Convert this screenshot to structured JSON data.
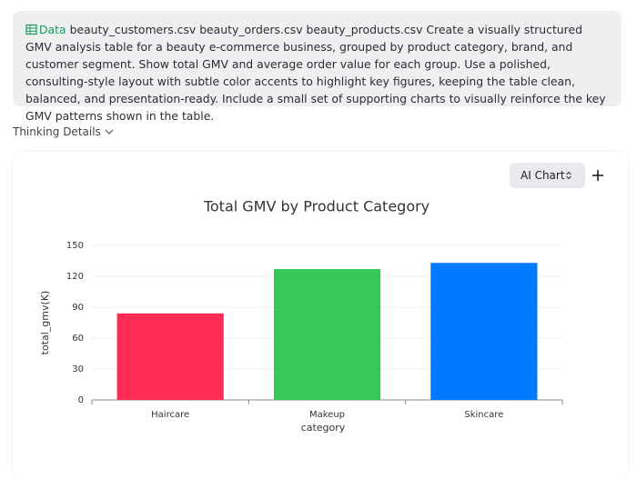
{
  "prompt": {
    "tag": "Data",
    "text": "beauty_customers.csv beauty_orders.csv beauty_products.csv Create a visually structured GMV analysis table for a beauty e-commerce business, grouped by product category, brand, and customer segment. Show total GMV and average order value for each group. Use a polished, consulting-style layout with subtle color accents to highlight key figures, keeping the table clean, balanced, and presentation-ready. Include a small set of supporting charts to visually reinforce the key GMV patterns shown in the table."
  },
  "thinking": "Thinking Details",
  "toolbar": {
    "chart_selector": "AI Chart"
  },
  "chart_data": {
    "type": "bar",
    "title": "Total GMV by Product Category",
    "x_label": "category",
    "y_label": "total_gmv(K)",
    "categories": [
      "Haircare",
      "Makeup",
      "Skincare"
    ],
    "values": [
      84,
      127,
      133
    ],
    "colors": [
      "#ff2d55",
      "#34c759",
      "#007aff"
    ],
    "ylim": [
      0,
      150
    ],
    "yticks": [
      0,
      30,
      60,
      90,
      120,
      150
    ],
    "grid": true
  }
}
